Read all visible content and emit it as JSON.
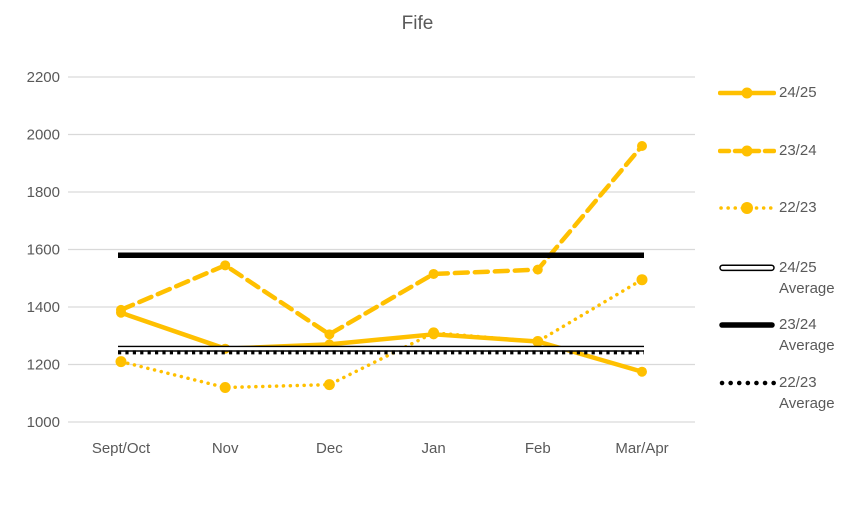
{
  "colors": {
    "gold": "#FFC000",
    "black": "#000000",
    "text": "#595959",
    "grid": "#D9D9D9",
    "white": "#FFFFFF"
  },
  "chart_data": {
    "type": "line",
    "title": "Fife",
    "categories": [
      "Sept/Oct",
      "Nov",
      "Dec",
      "Jan",
      "Feb",
      "Mar/Apr"
    ],
    "series": [
      {
        "name": "24/25",
        "dash": "solid",
        "color": "#FFC000",
        "values": [
          1380,
          1255,
          1270,
          1305,
          1280,
          1175
        ]
      },
      {
        "name": "23/24",
        "dash": "dashed",
        "color": "#FFC000",
        "values": [
          1390,
          1545,
          1305,
          1515,
          1530,
          1960
        ]
      },
      {
        "name": "22/23",
        "dash": "dotted",
        "color": "#FFC000",
        "values": [
          1210,
          1120,
          1130,
          1310,
          1280,
          1495
        ]
      }
    ],
    "average_lines": [
      {
        "name": "24/25 Average",
        "style": "double",
        "color": "#000000",
        "value": 1255
      },
      {
        "name": "23/24 Average",
        "style": "solid-thick",
        "color": "#000000",
        "value": 1580
      },
      {
        "name": "22/23 Average",
        "style": "dotted",
        "color": "#000000",
        "value": 1242
      }
    ],
    "ylim": [
      1000,
      2200
    ],
    "ytick_step": 200,
    "ytick_labels": [
      "2200",
      "2000",
      "1800",
      "1600",
      "1400",
      "1200",
      "1000"
    ],
    "xlabel": "",
    "ylabel": "",
    "grid": "horizontal",
    "legend_position": "right"
  },
  "legend": {
    "items": [
      {
        "label": "24/25"
      },
      {
        "label": "23/24"
      },
      {
        "label": "22/23"
      },
      {
        "line1": "24/25",
        "line2": "Average"
      },
      {
        "line1": "23/24",
        "line2": "Average"
      },
      {
        "line1": "22/23",
        "line2": "Average"
      }
    ]
  }
}
